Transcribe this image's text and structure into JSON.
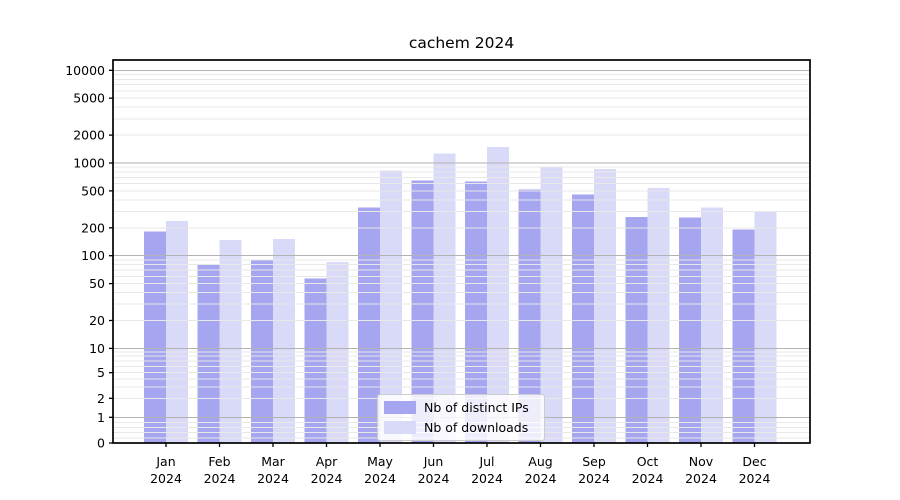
{
  "chart_data": {
    "type": "bar",
    "title": "cachem 2024",
    "categories": [
      "Jan",
      "Feb",
      "Mar",
      "Apr",
      "May",
      "Jun",
      "Jul",
      "Aug",
      "Sep",
      "Oct",
      "Nov",
      "Dec"
    ],
    "x_year_label": "2024",
    "series": [
      {
        "name": "Nb of distinct IPs",
        "color": "#a5a5f0",
        "values": [
          183,
          81,
          90,
          57,
          330,
          650,
          630,
          515,
          455,
          263,
          257,
          192
        ]
      },
      {
        "name": "Nb of downloads",
        "color": "#d9d9f8",
        "values": [
          236,
          147,
          151,
          86,
          830,
          1260,
          1480,
          920,
          860,
          537,
          330,
          300
        ]
      }
    ],
    "yscale": "symlog",
    "ylim": [
      0,
      10000
    ],
    "y_ticks": [
      0,
      1,
      2,
      5,
      10,
      20,
      50,
      100,
      200,
      500,
      1000,
      2000,
      5000,
      10000
    ],
    "grid": true,
    "legend_position": "lower center",
    "colors": {
      "background": "#ffffff",
      "grid_major": "#b2b2b2",
      "grid_minor": "#e8e8e8",
      "spine": "#000000",
      "text": "#000000"
    }
  }
}
